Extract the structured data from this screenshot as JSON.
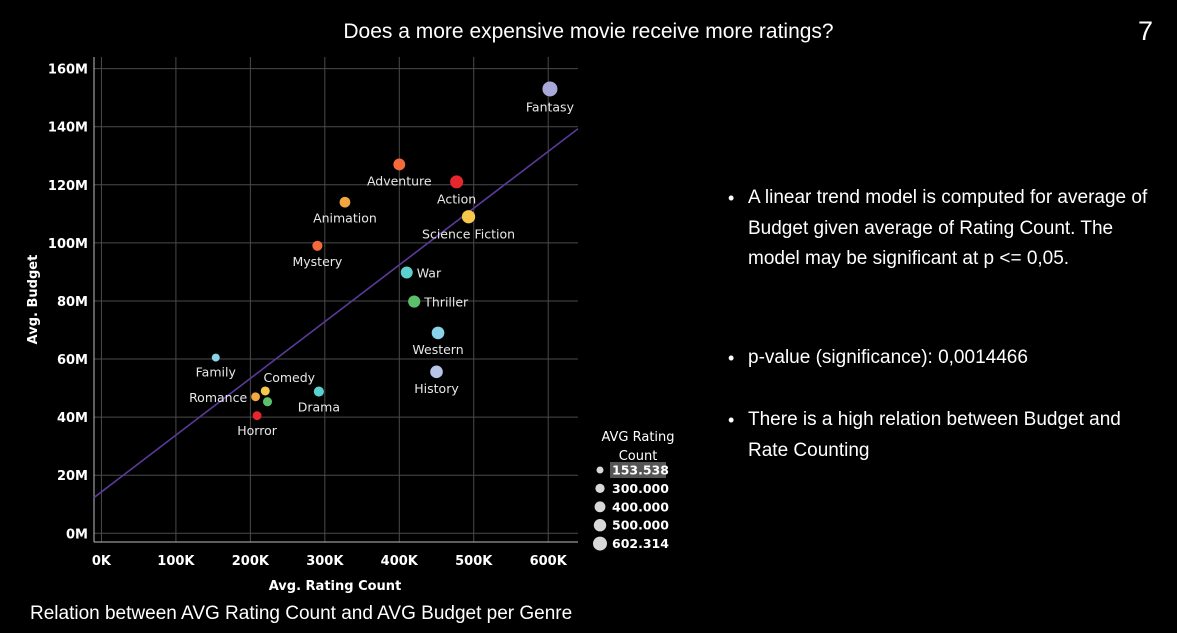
{
  "slide": {
    "title": "Does a more expensive movie receive more ratings?",
    "number": "7",
    "caption": "Relation between AVG Rating Count and AVG Budget per Genre"
  },
  "notes": [
    "A linear trend model is computed for average of Budget given average of Rating Count.  The model may be significant at p <= 0,05.",
    "p-value (significance): 0,0014466",
    "There is a high relation between Budget and Rate Counting"
  ],
  "chart_data": {
    "type": "scatter",
    "xlabel": "Avg. Rating Count",
    "ylabel": "Avg. Budget",
    "xlim": [
      -10000,
      640000
    ],
    "ylim": [
      -3000000,
      164000000
    ],
    "x_ticks": [
      0,
      100000,
      200000,
      300000,
      400000,
      500000,
      600000
    ],
    "x_tick_labels": [
      "0K",
      "100K",
      "200K",
      "300K",
      "400K",
      "500K",
      "600K"
    ],
    "y_ticks": [
      0,
      20000000,
      40000000,
      60000000,
      80000000,
      100000000,
      120000000,
      140000000,
      160000000
    ],
    "y_tick_labels": [
      "0M",
      "20M",
      "40M",
      "60M",
      "80M",
      "100M",
      "120M",
      "140M",
      "160M"
    ],
    "grid": true,
    "trend_line": {
      "x": [
        -10000,
        640000
      ],
      "y": [
        12300000,
        139300000
      ]
    },
    "points": [
      {
        "genre": "Fantasy",
        "x": 602314,
        "y": 153000000,
        "color": "#a9a9d9",
        "label_pos": "below"
      },
      {
        "genre": "Adventure",
        "x": 400000,
        "y": 127000000,
        "color": "#f56a3a",
        "label_pos": "below"
      },
      {
        "genre": "Action",
        "x": 477000,
        "y": 121000000,
        "color": "#e8262e",
        "label_pos": "below"
      },
      {
        "genre": "Animation",
        "x": 327000,
        "y": 114000000,
        "color": "#f4a640",
        "label_pos": "below"
      },
      {
        "genre": "Science Fiction",
        "x": 493000,
        "y": 109000000,
        "color": "#f8c84a",
        "label_pos": "below"
      },
      {
        "genre": "Mystery",
        "x": 290000,
        "y": 99000000,
        "color": "#f56a3a",
        "label_pos": "below"
      },
      {
        "genre": "War",
        "x": 410000,
        "y": 89800000,
        "color": "#5ccfcf",
        "label_pos": "right"
      },
      {
        "genre": "Thriller",
        "x": 420000,
        "y": 79800000,
        "color": "#5cbf6a",
        "label_pos": "right"
      },
      {
        "genre": "Western",
        "x": 452000,
        "y": 69000000,
        "color": "#8ad3e8",
        "label_pos": "below"
      },
      {
        "genre": "Family",
        "x": 153538,
        "y": 60500000,
        "color": "#8ad3e8",
        "label_pos": "below"
      },
      {
        "genre": "History",
        "x": 450000,
        "y": 55600000,
        "color": "#b8c4e8",
        "label_pos": "below"
      },
      {
        "genre": "Comedy",
        "x": 220000,
        "y": 49000000,
        "color": "#f8c84a",
        "label_pos": "above-right"
      },
      {
        "genre": "Drama",
        "x": 292000,
        "y": 48800000,
        "color": "#5ccfcf",
        "label_pos": "below"
      },
      {
        "genre": "Romance",
        "x": 207000,
        "y": 47000000,
        "color": "#f4a640",
        "label_pos": "left"
      },
      {
        "genre": "",
        "x": 223000,
        "y": 45300000,
        "color": "#5cbf6a",
        "label_pos": "none"
      },
      {
        "genre": "Horror",
        "x": 209000,
        "y": 40500000,
        "color": "#e8262e",
        "label_pos": "below"
      }
    ],
    "size_legend": {
      "title": [
        "AVG Rating",
        "Count"
      ],
      "entries": [
        {
          "label": "153.538",
          "value": 153538
        },
        {
          "label": "300.000",
          "value": 300000
        },
        {
          "label": "400.000",
          "value": 400000
        },
        {
          "label": "500.000",
          "value": 500000
        },
        {
          "label": "602.314",
          "value": 602314
        }
      ]
    }
  },
  "colors": {
    "background": "#000000",
    "grid": "#4a4a4a",
    "trend": "#5a3a9a",
    "axis_text": "#ffffff"
  }
}
